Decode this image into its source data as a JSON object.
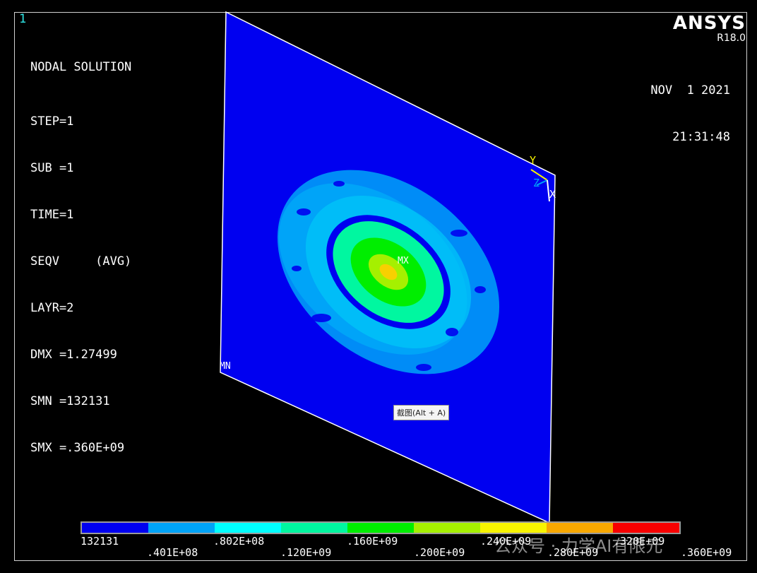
{
  "window_number": "1",
  "solution": {
    "title": "NODAL SOLUTION",
    "lines": [
      "STEP=1",
      "SUB =1",
      "TIME=1",
      "SEQV     (AVG)",
      "LAYR=2",
      "DMX =1.27499",
      "SMN =132131",
      "SMX =.360E+09"
    ]
  },
  "brand": {
    "logo": "ANSYS",
    "version": "R18.0"
  },
  "date": "NOV  1 2021",
  "time": "21:31:48",
  "markers": {
    "max": "MX",
    "min": "MN"
  },
  "axes": {
    "y": "Y",
    "z": "Z",
    "x": "X"
  },
  "tooltip": "截图(Alt + A)",
  "legend": {
    "colors": [
      "#0000f0",
      "#00a4f8",
      "#00ffff",
      "#00f7a0",
      "#00ee00",
      "#a5f000",
      "#f8f400",
      "#f8a800",
      "#f80000"
    ],
    "labels_top": [
      "132131",
      ".802E+08",
      ".160E+09",
      ".240E+09",
      ".320E+09"
    ],
    "labels_bottom": [
      ".401E+08",
      ".120E+09",
      ".200E+09",
      ".280E+09",
      ".360E+09"
    ]
  },
  "watermark": "公众号 · 力学AI有限元"
}
